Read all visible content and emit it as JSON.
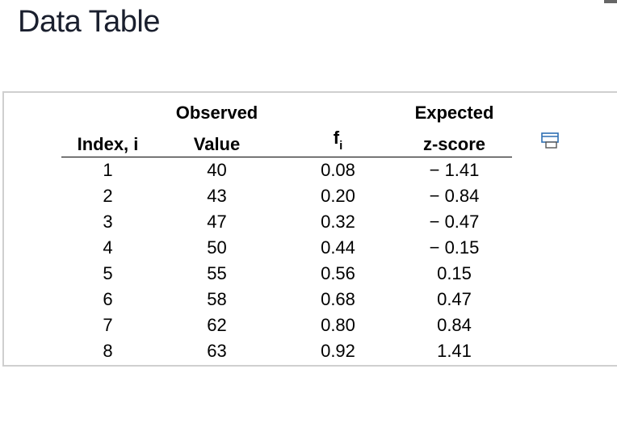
{
  "page": {
    "title": "Data Table"
  },
  "table": {
    "headers": {
      "index": {
        "line1": "",
        "line2": "Index, i"
      },
      "observed": {
        "line1": "Observed",
        "line2": "Value"
      },
      "fi": {
        "base": "f",
        "sub": "i"
      },
      "expected": {
        "line1": "Expected",
        "line2": "z-score"
      }
    },
    "rows": [
      {
        "index": "1",
        "observed": "40",
        "fi": "0.08",
        "z": "− 1.41"
      },
      {
        "index": "2",
        "observed": "43",
        "fi": "0.20",
        "z": "− 0.84"
      },
      {
        "index": "3",
        "observed": "47",
        "fi": "0.32",
        "z": "− 0.47"
      },
      {
        "index": "4",
        "observed": "50",
        "fi": "0.44",
        "z": "− 0.15"
      },
      {
        "index": "5",
        "observed": "55",
        "fi": "0.56",
        "z": "0.15"
      },
      {
        "index": "6",
        "observed": "58",
        "fi": "0.68",
        "z": "0.47"
      },
      {
        "index": "7",
        "observed": "62",
        "fi": "0.80",
        "z": "0.84"
      },
      {
        "index": "8",
        "observed": "63",
        "fi": "0.92",
        "z": "1.41"
      }
    ]
  },
  "icons": {
    "copy": "copy-to-clipboard-icon"
  },
  "colors": {
    "title": "#1a1f2e",
    "icon_accent": "#2f6fb3",
    "panel_border": "#cfcfcf"
  }
}
